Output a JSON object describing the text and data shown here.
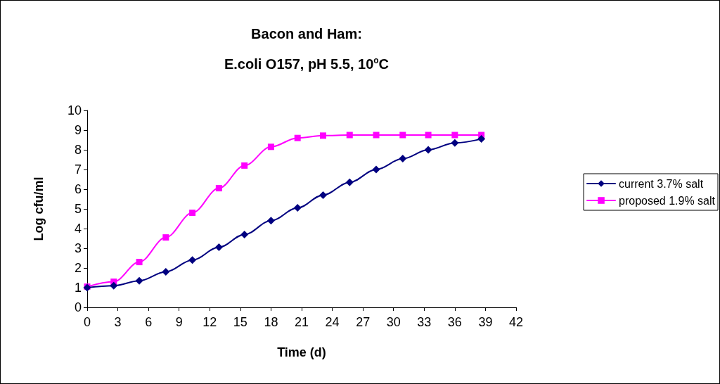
{
  "chart_data": {
    "type": "line",
    "title": "Bacon and Ham:",
    "subtitle": "E.coli O157, pH 5.5, 10$^{o}$C",
    "xlabel": "Time (d)",
    "ylabel": "Log cfu/ml",
    "x": [
      0,
      2.6,
      5.1,
      7.7,
      10.3,
      12.9,
      15.4,
      18,
      20.6,
      23.1,
      25.7,
      28.3,
      30.9,
      33.4,
      36,
      38.6
    ],
    "series": [
      {
        "name": "current 3.7% salt",
        "color": "#000080",
        "marker": "diamond",
        "values": [
          1.0,
          1.1,
          1.35,
          1.8,
          2.4,
          3.05,
          3.7,
          4.4,
          5.05,
          5.7,
          6.35,
          7.0,
          7.55,
          8.0,
          8.35,
          8.55
        ]
      },
      {
        "name": "proposed 1.9% salt",
        "color": "#ff00ff",
        "marker": "square",
        "values": [
          1.05,
          1.3,
          2.3,
          3.55,
          4.8,
          6.05,
          7.2,
          8.15,
          8.6,
          8.72,
          8.75,
          8.75,
          8.75,
          8.75,
          8.75,
          8.75
        ]
      }
    ],
    "xlim": [
      0,
      42
    ],
    "xticks": [
      0,
      3,
      6,
      9,
      12,
      15,
      18,
      21,
      24,
      27,
      30,
      33,
      36,
      39,
      42
    ],
    "ylim": [
      0,
      10
    ],
    "yticks": [
      0,
      1,
      2,
      3,
      4,
      5,
      6,
      7,
      8,
      9,
      10
    ],
    "grid": false,
    "legend": "right",
    "line_style": "solid"
  }
}
